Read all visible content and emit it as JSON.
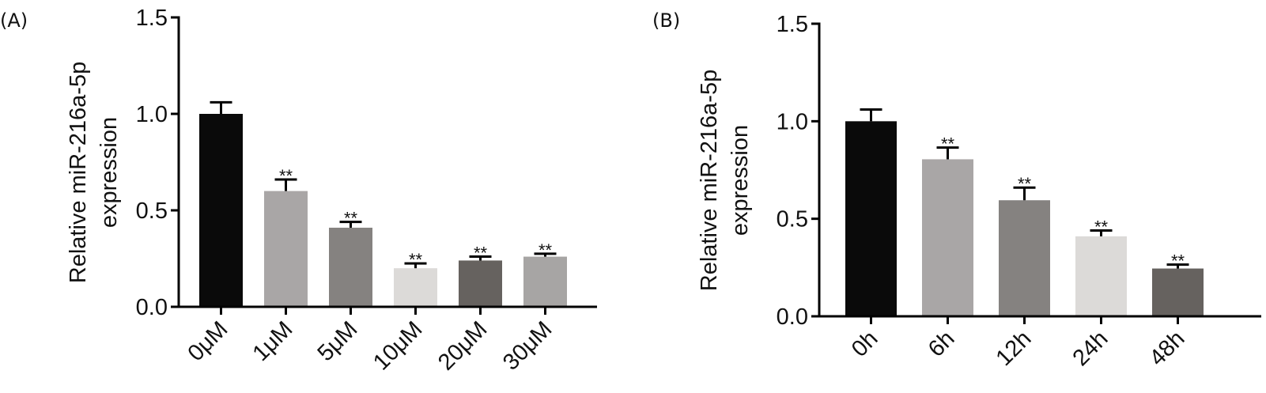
{
  "chart_data": [
    {
      "type": "bar",
      "panel_label": "(A)",
      "ylabel": [
        "Relative miR-216a-5p",
        "expression"
      ],
      "ylim": [
        0,
        1.5
      ],
      "yticks": [
        "0.0",
        "0.5",
        "1.0",
        "1.5"
      ],
      "ytick_values": [
        0,
        0.5,
        1.0,
        1.5
      ],
      "categories": [
        "0μM",
        "1μM",
        "5μM",
        "10μM",
        "20μM",
        "30μM"
      ],
      "values": [
        1.0,
        0.6,
        0.41,
        0.2,
        0.24,
        0.26
      ],
      "errors": [
        0.06,
        0.06,
        0.03,
        0.025,
        0.02,
        0.015
      ],
      "significance": [
        "",
        "**",
        "**",
        "**",
        "**",
        "**"
      ],
      "colors": [
        "#0a0a0a",
        "#a9a6a6",
        "#858280",
        "#dcdad8",
        "#66625f",
        "#a7a5a4"
      ],
      "grid": false
    },
    {
      "type": "bar",
      "panel_label": "(B)",
      "ylabel": [
        "Relative miR-216a-5p",
        "expression"
      ],
      "ylim": [
        0,
        1.5
      ],
      "yticks": [
        "0.0",
        "0.5",
        "1.0",
        "1.5"
      ],
      "ytick_values": [
        0,
        0.5,
        1.0,
        1.5
      ],
      "categories": [
        "0h",
        "6h",
        "12h",
        "24h",
        "48h"
      ],
      "values": [
        1.0,
        0.805,
        0.595,
        0.41,
        0.245
      ],
      "errors": [
        0.06,
        0.06,
        0.065,
        0.03,
        0.02
      ],
      "significance": [
        "",
        "**",
        "**",
        "**",
        "**"
      ],
      "colors": [
        "#0a0a0a",
        "#a9a6a6",
        "#858280",
        "#dcdad8",
        "#66625f"
      ],
      "grid": false
    }
  ]
}
